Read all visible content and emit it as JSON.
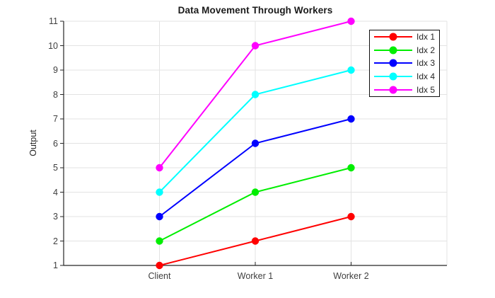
{
  "chart_data": {
    "type": "line",
    "title": "Data Movement Through Workers",
    "xlabel": "",
    "ylabel": "Output",
    "categories": [
      "Client",
      "Worker 1",
      "Worker 2"
    ],
    "series": [
      {
        "name": "Idx 1",
        "color": "#ff0000",
        "values": [
          1,
          2,
          3
        ]
      },
      {
        "name": "Idx 2",
        "color": "#00ee00",
        "values": [
          2,
          4,
          5
        ]
      },
      {
        "name": "Idx 3",
        "color": "#0000ff",
        "values": [
          3,
          6,
          7
        ]
      },
      {
        "name": "Idx 4",
        "color": "#00ffff",
        "values": [
          4,
          8,
          9
        ]
      },
      {
        "name": "Idx 5",
        "color": "#ff00ff",
        "values": [
          5,
          10,
          11
        ]
      }
    ],
    "y_ticks": [
      1,
      2,
      3,
      4,
      5,
      6,
      7,
      8,
      9,
      10,
      11
    ],
    "ylim": [
      1,
      11
    ],
    "grid": true,
    "marker": "filled-circle",
    "legend": {
      "position": "northeast",
      "labels": [
        "Idx 1",
        "Idx 2",
        "Idx 3",
        "Idx 4",
        "Idx 5"
      ]
    }
  },
  "style": {
    "background": "#ffffff",
    "grid_color": "#e3e3e3",
    "axis_color": "#262626",
    "tick_label_color": "#3f3f3f",
    "title_color": "#1a1a1a",
    "legend_border_color": "#0f0f0f",
    "legend_background": "#ffffff"
  }
}
